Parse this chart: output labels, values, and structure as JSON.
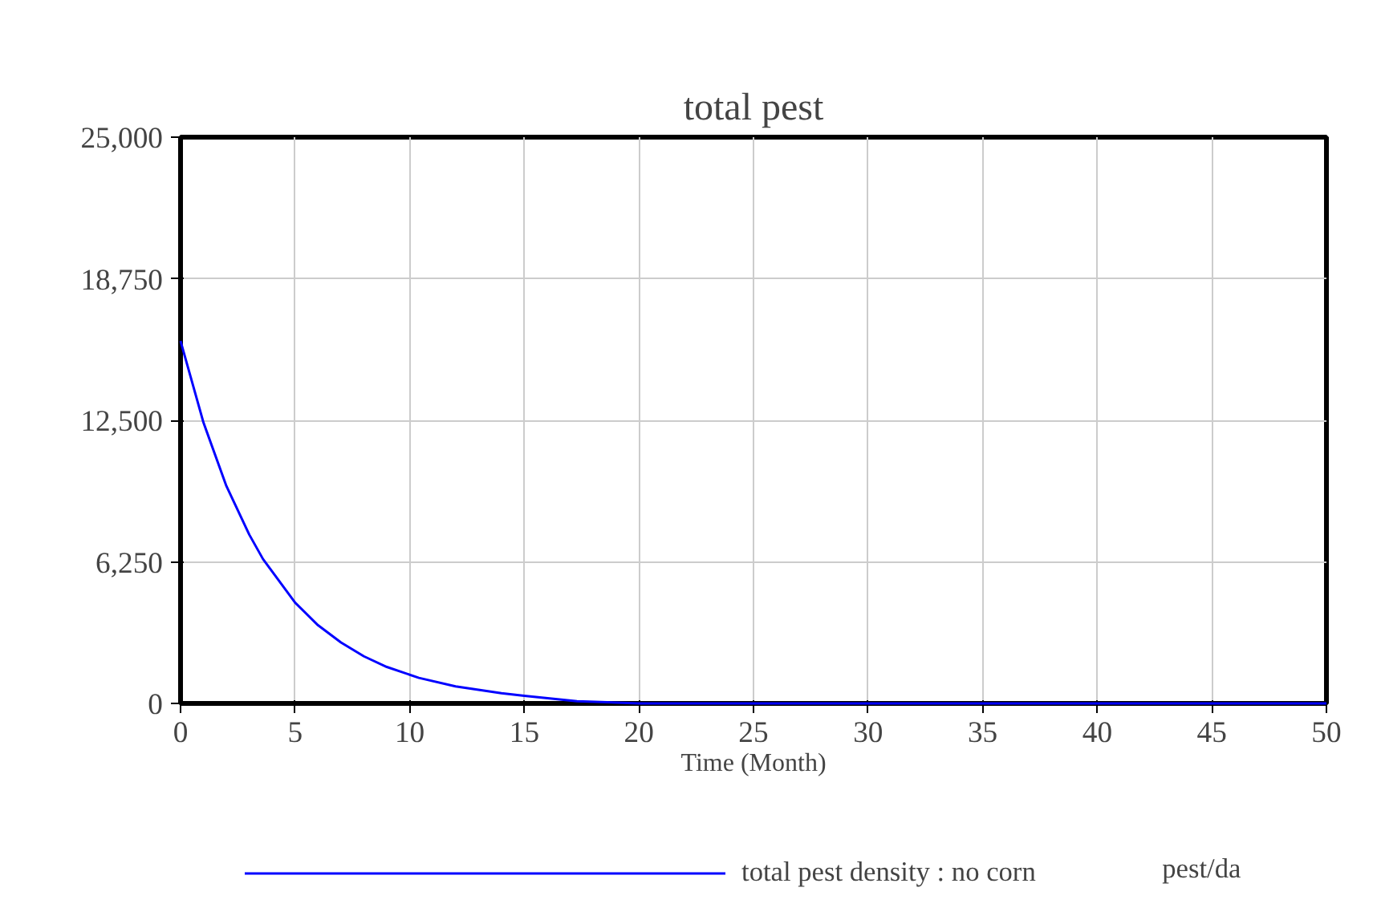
{
  "chart_data": {
    "type": "line",
    "title": "total pest",
    "xlabel": "Time (Month)",
    "x": [
      0,
      1,
      2,
      3,
      3.6,
      5,
      6,
      7,
      8,
      9,
      10.4,
      12,
      14,
      15,
      17.3,
      20,
      25,
      30,
      35,
      40,
      45,
      50
    ],
    "series": [
      {
        "name": "total pest density : no corn",
        "color": "#0000ff",
        "values": [
          16000,
          12400,
          9600,
          7450,
          6370,
          4450,
          3450,
          2690,
          2080,
          1610,
          1130,
          750,
          450,
          340,
          100,
          0,
          0,
          0,
          0,
          0,
          0,
          0
        ]
      }
    ],
    "xlim": [
      0,
      50
    ],
    "ylim": [
      0,
      25000
    ],
    "xticks": [
      0,
      5,
      10,
      15,
      20,
      25,
      30,
      35,
      40,
      45,
      50
    ],
    "yticks": [
      {
        "value": 0,
        "label": "0"
      },
      {
        "value": 6250,
        "label": "6,250"
      },
      {
        "value": 12500,
        "label": "12,500"
      },
      {
        "value": 18750,
        "label": "18,750"
      },
      {
        "value": 25000,
        "label": "25,000"
      }
    ],
    "grid": true,
    "legend": "bottom",
    "line_style": "solid",
    "annotations": [
      "pest/da"
    ]
  }
}
